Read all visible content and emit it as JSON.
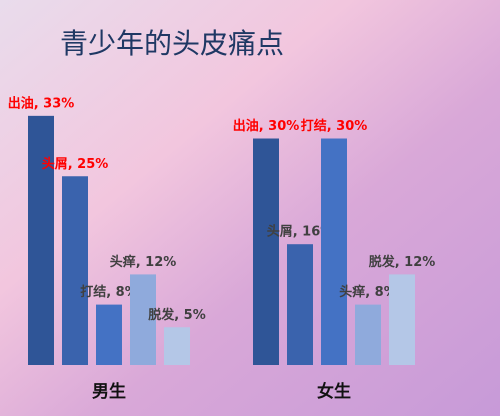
{
  "title": "青少年的头皮痛点",
  "chart_data": [
    {
      "type": "bar",
      "xlabel": "男生",
      "values": [
        33,
        25,
        8,
        12,
        5
      ],
      "value_labels": [
        "出油, 33%",
        "头屑, 25%",
        "打结, 8%",
        "头痒, 12%",
        "脱发, 5%"
      ],
      "colors": [
        "#2f5597",
        "#3a63ad",
        "#4472c4",
        "#8faadc",
        "#b4c7e7"
      ],
      "label_colors": [
        "#ff0000",
        "#ff0000",
        "#404040",
        "#404040",
        "#404040"
      ]
    },
    {
      "type": "bar",
      "xlabel": "女生",
      "values": [
        30,
        16,
        30,
        8,
        12
      ],
      "value_labels": [
        "出油, 30%",
        "头屑, 16%",
        "打结, 30%",
        "头痒, 8%",
        "脱发, 12%"
      ],
      "colors": [
        "#2f5597",
        "#3a63ad",
        "#4472c4",
        "#8faadc",
        "#b4c7e7"
      ],
      "label_colors": [
        "#ff0000",
        "#404040",
        "#ff0000",
        "#404040",
        "#404040"
      ]
    }
  ]
}
